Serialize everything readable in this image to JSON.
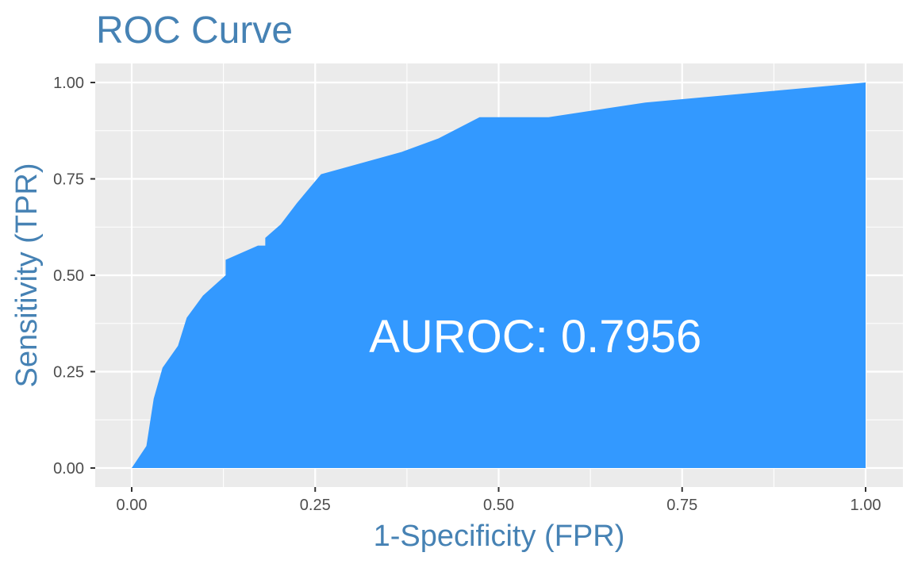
{
  "chart_data": {
    "type": "area",
    "title": "ROC Curve",
    "xlabel": "1-Specificity (FPR)",
    "ylabel": "Sensitivity (TPR)",
    "xlim": [
      0,
      1
    ],
    "ylim": [
      0,
      1
    ],
    "x_ticks": [
      0,
      0.25,
      0.5,
      0.75,
      1
    ],
    "x_tick_labels": [
      "0.00",
      "0.25",
      "0.50",
      "0.75",
      "1.00"
    ],
    "y_ticks": [
      0,
      0.25,
      0.5,
      0.75,
      1
    ],
    "y_tick_labels": [
      "0.00",
      "0.25",
      "0.50",
      "0.75",
      "1.00"
    ],
    "grid": true,
    "annotation": "AUROC: 0.7956",
    "series": [
      {
        "x": [
          0,
          0.02,
          0.03,
          0.042,
          0.063,
          0.075,
          0.097,
          0.128,
          0.128,
          0.172,
          0.182,
          0.182,
          0.203,
          0.225,
          0.258,
          0.368,
          0.418,
          0.474,
          0.568,
          0.7,
          1.0
        ],
        "y": [
          0,
          0.057,
          0.18,
          0.26,
          0.317,
          0.39,
          0.447,
          0.5,
          0.54,
          0.577,
          0.577,
          0.597,
          0.632,
          0.687,
          0.762,
          0.82,
          0.855,
          0.91,
          0.91,
          0.948,
          1.0
        ]
      }
    ],
    "colors": {
      "fill": "#3399ff",
      "panel": "#ebebeb",
      "grid": "#ffffff",
      "title": "#4682b4",
      "axis_label": "#4682b4",
      "tick_label": "#4d4d4d",
      "tick": "#333333",
      "annotation": "#ffffff"
    }
  }
}
